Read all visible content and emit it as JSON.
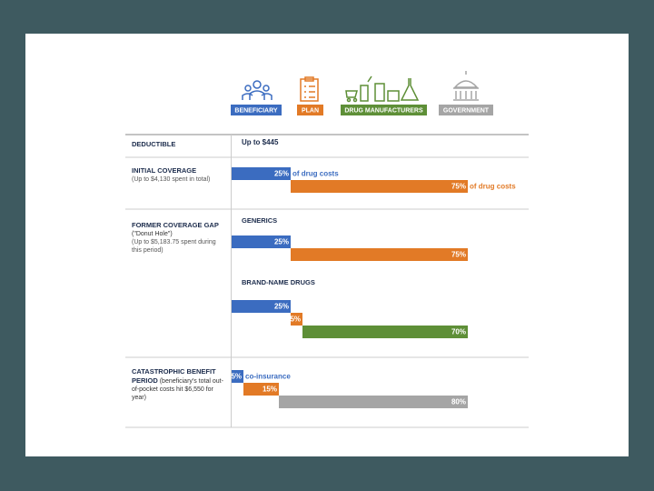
{
  "chart_data": {
    "type": "bar",
    "legend": [
      {
        "name": "BENEFICIARY",
        "color": "#3b6cc0"
      },
      {
        "name": "PLAN",
        "color": "#e27a26"
      },
      {
        "name": "DRUG MANUFACTURERS",
        "color": "#5e8f37"
      },
      {
        "name": "GOVERNMENT",
        "color": "#a5a5a5"
      }
    ],
    "rows": [
      {
        "title": "DEDUCTIBLE",
        "amount": "Up to $445"
      },
      {
        "title": "INITIAL COVERAGE",
        "note": "(Up to $4,130 spent in total)",
        "groups": [
          {
            "values": [
              25,
              75
            ],
            "value_labels": [
              "25%",
              "75%"
            ],
            "suffixes": [
              "of drug costs",
              "of drug costs"
            ],
            "colors": [
              "#3b6cc0",
              "#e27a26"
            ]
          }
        ]
      },
      {
        "title": "FORMER COVERAGE GAP",
        "title_note": "(\"Donut Hole\")",
        "note": "(Up to $5,183.75 spent during this period)",
        "groups": [
          {
            "heading": "GENERICS",
            "values": [
              25,
              75
            ],
            "value_labels": [
              "25%",
              "75%"
            ],
            "colors": [
              "#3b6cc0",
              "#e27a26"
            ]
          },
          {
            "heading": "BRAND-NAME DRUGS",
            "values": [
              25,
              5,
              70
            ],
            "value_labels": [
              "25%",
              "5%",
              "70%"
            ],
            "colors": [
              "#3b6cc0",
              "#e27a26",
              "#5e8f37"
            ]
          }
        ]
      },
      {
        "title": "CATASTROPHIC BENEFIT PERIOD",
        "title_note": "(beneficiary's total out-of-pocket costs hit $6,550 for year)",
        "groups": [
          {
            "values": [
              5,
              15,
              80
            ],
            "value_labels": [
              "5%",
              "15%",
              "80%"
            ],
            "suffixes": [
              "co-insurance",
              null,
              null
            ],
            "colors": [
              "#3b6cc0",
              "#e27a26",
              "#a5a5a5"
            ]
          }
        ]
      }
    ]
  }
}
